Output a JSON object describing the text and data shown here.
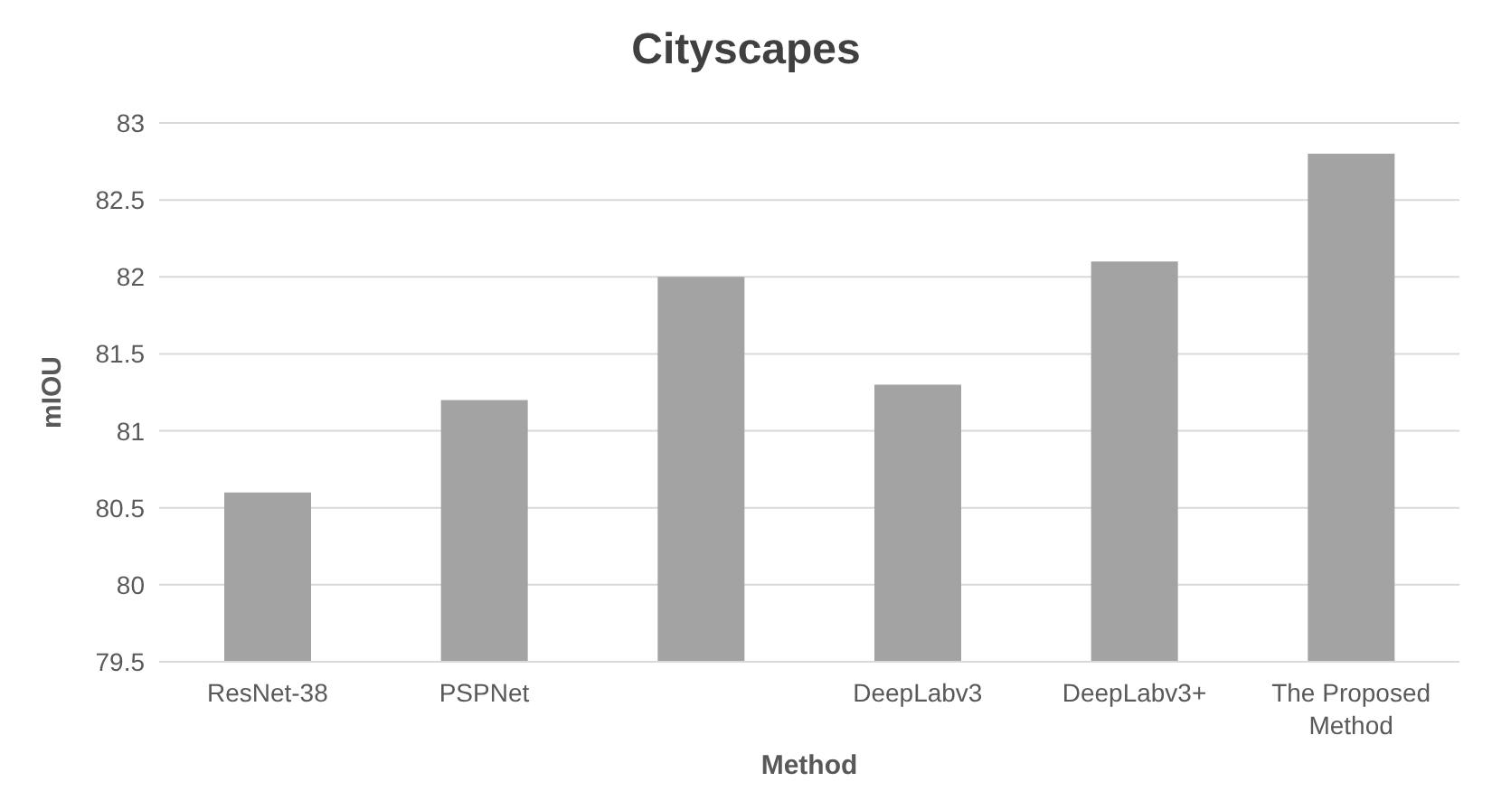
{
  "chart_data": {
    "type": "bar",
    "title": "Cityscapes",
    "xlabel": "Method",
    "ylabel": "mIOU",
    "categories": [
      "ResNet-38",
      "PSPNet",
      null,
      "DeepLabv3",
      "DeepLabv3+",
      "The Proposed Method"
    ],
    "values": [
      80.6,
      81.2,
      82.0,
      81.3,
      82.1,
      82.8
    ],
    "color": "#a3a3a3",
    "ylim": [
      79.5,
      83
    ],
    "yticks": [
      79.5,
      80,
      80.5,
      81,
      81.5,
      82,
      82.5,
      83
    ],
    "grid": "y",
    "legend": false
  }
}
